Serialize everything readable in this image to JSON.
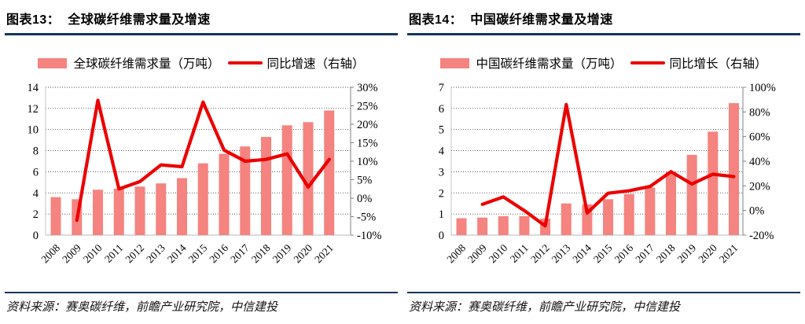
{
  "figures": [
    {
      "title": "图表13：  全球碳纤维需求量及增速",
      "legend": {
        "bar_label": "全球碳纤维需求量（万吨）",
        "line_label": "同比增速（右轴）"
      },
      "source": "资料来源：赛奥碳纤维，前瞻产业研究院，中信建投"
    },
    {
      "title": "图表14：  中国碳纤维需求量及增速",
      "legend": {
        "bar_label": "中国碳纤维需求量（万吨）",
        "line_label": "同比增长（右轴）"
      },
      "source": "资料来源：赛奥碳纤维，前瞻产业研究院，中信建投"
    }
  ],
  "colors": {
    "bar": "#F58380",
    "line": "#EC0000",
    "rule": "#17365D",
    "grid": "#4D4D4D",
    "axis": "#C6C6C6",
    "tick": "#808080"
  },
  "chart_data": [
    {
      "type": "combo",
      "title": "全球碳纤维需求量及增速",
      "categories": [
        "2008",
        "2009",
        "2010",
        "2011",
        "2012",
        "2013",
        "2014",
        "2015",
        "2016",
        "2017",
        "2018",
        "2019",
        "2020",
        "2021"
      ],
      "series": [
        {
          "name": "全球碳纤维需求量（万吨）",
          "type": "bar",
          "axis": "left",
          "values": [
            3.6,
            3.4,
            4.3,
            4.4,
            4.6,
            4.9,
            5.4,
            6.8,
            7.7,
            8.4,
            9.3,
            10.4,
            10.7,
            11.8
          ]
        },
        {
          "name": "同比增速（右轴）",
          "type": "line",
          "axis": "right",
          "values": [
            null,
            -6,
            26.5,
            2.5,
            4.5,
            9,
            8.5,
            26,
            13,
            10,
            10.5,
            12,
            3,
            10.5
          ]
        }
      ],
      "left_axis": {
        "min": 0,
        "max": 14,
        "step": 2,
        "format": "number"
      },
      "right_axis": {
        "min": -10,
        "max": 30,
        "step": 5,
        "format": "percent"
      },
      "grid": true,
      "legend_position": "top"
    },
    {
      "type": "combo",
      "title": "中国碳纤维需求量及增速",
      "categories": [
        "2008",
        "2009",
        "2010",
        "2011",
        "2012",
        "2013",
        "2014",
        "2015",
        "2016",
        "2017",
        "2018",
        "2019",
        "2020",
        "2021"
      ],
      "series": [
        {
          "name": "中国碳纤维需求量（万吨）",
          "type": "bar",
          "axis": "left",
          "values": [
            0.8,
            0.83,
            0.9,
            0.9,
            0.78,
            1.5,
            1.46,
            1.7,
            1.95,
            2.25,
            3.0,
            3.8,
            4.9,
            6.25
          ]
        },
        {
          "name": "同比增长（右轴）",
          "type": "line",
          "axis": "right",
          "values": [
            null,
            5,
            11,
            0,
            -12.5,
            86,
            -2,
            14,
            16,
            19.5,
            31.5,
            21.5,
            29.5,
            27.5
          ]
        }
      ],
      "left_axis": {
        "min": 0,
        "max": 7,
        "step": 1,
        "format": "number"
      },
      "right_axis": {
        "min": -20,
        "max": 100,
        "step": 20,
        "format": "percent"
      },
      "grid": true,
      "legend_position": "top"
    }
  ]
}
